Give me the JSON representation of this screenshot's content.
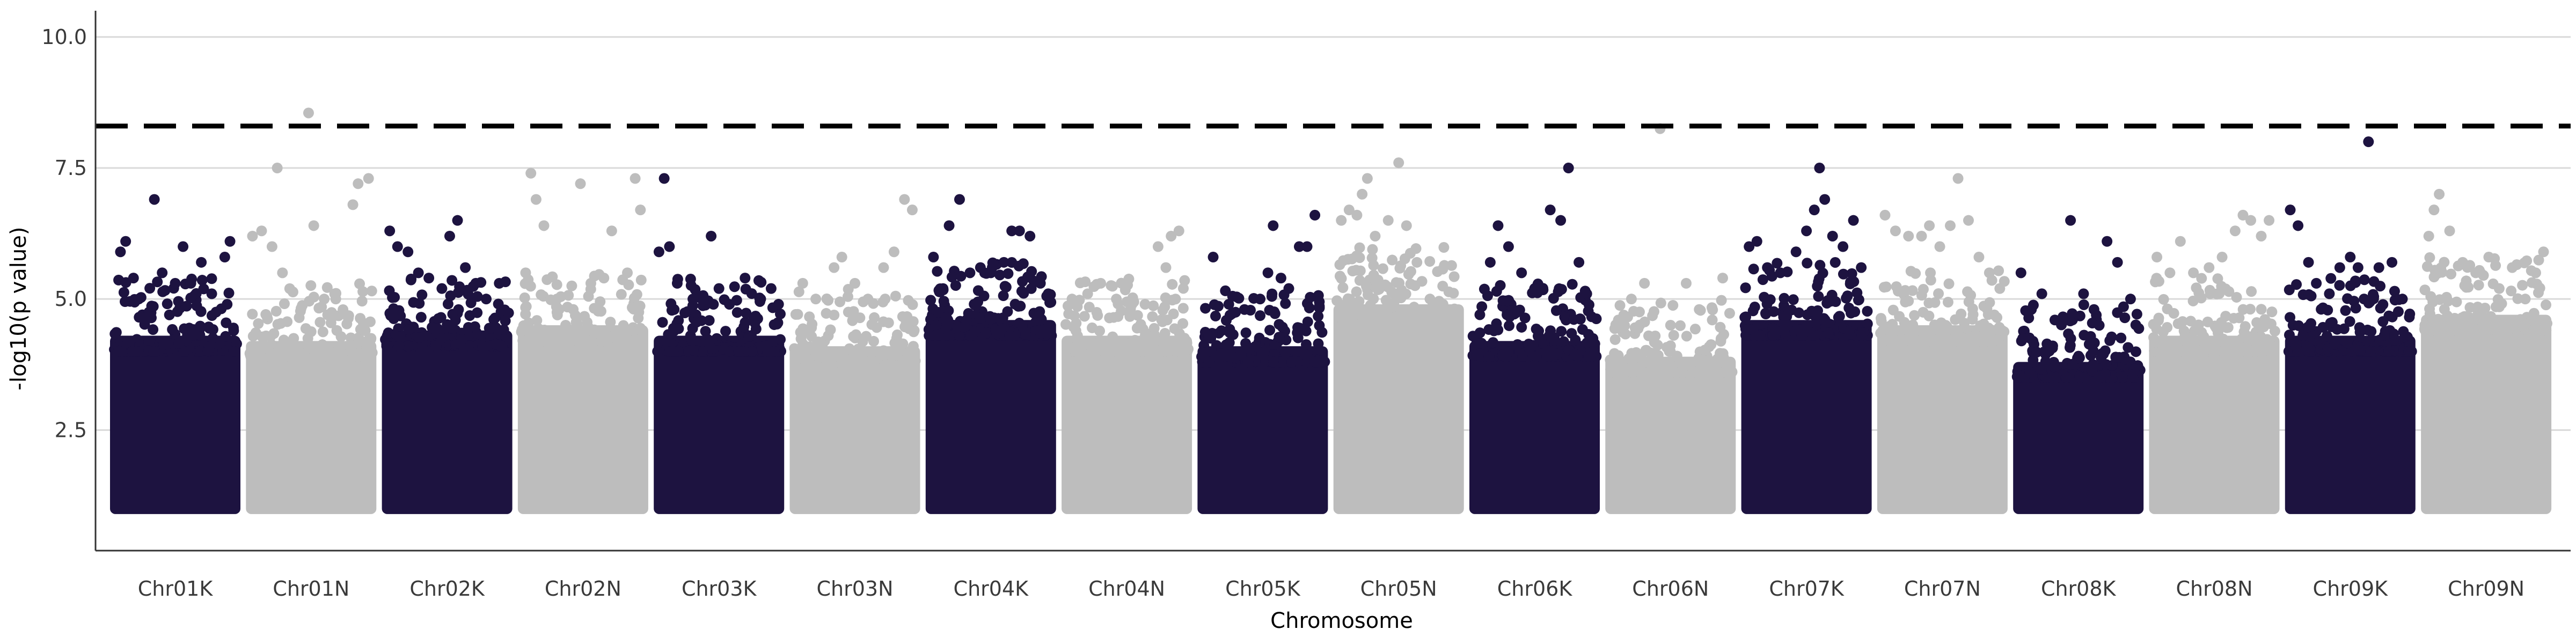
{
  "chart_data": {
    "type": "scatter",
    "xlabel": "Chromosome",
    "ylabel": "-log10(p value)",
    "ylim": [
      0.2,
      10.5
    ],
    "yticks": [
      2.5,
      5.0,
      7.5,
      10.0
    ],
    "ytick_labels": [
      "2.5",
      "5.0",
      "7.5",
      "10.0"
    ],
    "grid": "horizontal major only",
    "legend": "none",
    "threshold": 8.3,
    "point_floor": 1.0,
    "colors": {
      "dark": "#1d1340",
      "light": "#bdbdbd",
      "threshold": "#000000",
      "grid": "#d9d9d9",
      "axis": "#333333"
    },
    "chromosomes": [
      {
        "name": "Chr01K",
        "color": "dark",
        "dense_top": 4.3,
        "peaks": [
          [
            0.08,
            5.9
          ],
          [
            0.12,
            6.1
          ],
          [
            0.18,
            5.4
          ],
          [
            0.22,
            5.0
          ],
          [
            0.34,
            6.9
          ],
          [
            0.4,
            5.5
          ],
          [
            0.5,
            5.3
          ],
          [
            0.56,
            6.0
          ],
          [
            0.62,
            5.3
          ],
          [
            0.7,
            5.7
          ],
          [
            0.78,
            5.1
          ],
          [
            0.88,
            5.8
          ],
          [
            0.92,
            6.1
          ]
        ]
      },
      {
        "name": "Chr01N",
        "color": "light",
        "dense_top": 4.2,
        "peaks": [
          [
            0.05,
            6.2
          ],
          [
            0.12,
            6.3
          ],
          [
            0.2,
            6.0
          ],
          [
            0.24,
            7.5
          ],
          [
            0.28,
            5.5
          ],
          [
            0.48,
            8.55
          ],
          [
            0.52,
            6.4
          ],
          [
            0.6,
            5.0
          ],
          [
            0.68,
            5.1
          ],
          [
            0.82,
            6.8
          ],
          [
            0.86,
            7.2
          ],
          [
            0.94,
            7.3
          ]
        ]
      },
      {
        "name": "Chr02K",
        "color": "dark",
        "dense_top": 4.4,
        "peaks": [
          [
            0.06,
            6.3
          ],
          [
            0.12,
            6.0
          ],
          [
            0.2,
            5.9
          ],
          [
            0.28,
            5.5
          ],
          [
            0.36,
            5.4
          ],
          [
            0.46,
            5.2
          ],
          [
            0.52,
            6.2
          ],
          [
            0.58,
            6.5
          ],
          [
            0.64,
            5.6
          ],
          [
            0.72,
            5.3
          ],
          [
            0.8,
            5.0
          ],
          [
            0.9,
            5.3
          ]
        ]
      },
      {
        "name": "Chr02N",
        "color": "light",
        "dense_top": 4.5,
        "peaks": [
          [
            0.06,
            5.5
          ],
          [
            0.1,
            7.4
          ],
          [
            0.14,
            6.9
          ],
          [
            0.2,
            6.4
          ],
          [
            0.3,
            5.0
          ],
          [
            0.48,
            7.2
          ],
          [
            0.56,
            5.3
          ],
          [
            0.66,
            5.4
          ],
          [
            0.72,
            6.3
          ],
          [
            0.84,
            5.5
          ],
          [
            0.9,
            7.3
          ],
          [
            0.94,
            6.7
          ]
        ]
      },
      {
        "name": "Chr03K",
        "color": "dark",
        "dense_top": 4.3,
        "peaks": [
          [
            0.04,
            5.9
          ],
          [
            0.08,
            7.3
          ],
          [
            0.12,
            6.0
          ],
          [
            0.18,
            5.3
          ],
          [
            0.3,
            5.0
          ],
          [
            0.44,
            6.2
          ],
          [
            0.5,
            5.2
          ],
          [
            0.58,
            4.9
          ],
          [
            0.7,
            5.4
          ],
          [
            0.82,
            5.0
          ],
          [
            0.9,
            5.2
          ]
        ]
      },
      {
        "name": "Chr03N",
        "color": "light",
        "dense_top": 4.1,
        "peaks": [
          [
            0.1,
            5.3
          ],
          [
            0.2,
            5.0
          ],
          [
            0.34,
            5.6
          ],
          [
            0.4,
            5.8
          ],
          [
            0.5,
            5.3
          ],
          [
            0.6,
            5.0
          ],
          [
            0.72,
            5.6
          ],
          [
            0.8,
            5.9
          ],
          [
            0.88,
            6.9
          ],
          [
            0.94,
            6.7
          ]
        ]
      },
      {
        "name": "Chr04K",
        "color": "dark",
        "dense_top": 4.6,
        "peaks": [
          [
            0.06,
            5.8
          ],
          [
            0.18,
            6.4
          ],
          [
            0.26,
            6.9
          ],
          [
            0.34,
            5.5
          ],
          [
            0.42,
            5.6
          ],
          [
            0.5,
            5.5
          ],
          [
            0.6,
            5.7
          ],
          [
            0.66,
            6.3
          ],
          [
            0.72,
            6.3
          ],
          [
            0.8,
            6.2
          ],
          [
            0.88,
            5.3
          ],
          [
            0.94,
            5.1
          ]
        ]
      },
      {
        "name": "Chr04N",
        "color": "light",
        "dense_top": 4.3,
        "peaks": [
          [
            0.08,
            5.0
          ],
          [
            0.2,
            5.1
          ],
          [
            0.3,
            5.3
          ],
          [
            0.42,
            5.0
          ],
          [
            0.54,
            4.9
          ],
          [
            0.64,
            4.9
          ],
          [
            0.74,
            6.0
          ],
          [
            0.8,
            5.6
          ],
          [
            0.84,
            6.2
          ],
          [
            0.9,
            6.3
          ]
        ]
      },
      {
        "name": "Chr05K",
        "color": "dark",
        "dense_top": 4.1,
        "peaks": [
          [
            0.12,
            5.8
          ],
          [
            0.24,
            4.9
          ],
          [
            0.36,
            4.8
          ],
          [
            0.48,
            5.0
          ],
          [
            0.54,
            5.5
          ],
          [
            0.58,
            6.4
          ],
          [
            0.64,
            5.4
          ],
          [
            0.7,
            5.2
          ],
          [
            0.78,
            6.0
          ],
          [
            0.84,
            6.0
          ],
          [
            0.9,
            6.6
          ]
        ]
      },
      {
        "name": "Chr05N",
        "color": "light",
        "dense_top": 4.9,
        "peaks": [
          [
            0.06,
            6.5
          ],
          [
            0.12,
            6.7
          ],
          [
            0.18,
            6.6
          ],
          [
            0.22,
            7.0
          ],
          [
            0.26,
            7.3
          ],
          [
            0.32,
            6.2
          ],
          [
            0.42,
            6.5
          ],
          [
            0.5,
            7.6
          ],
          [
            0.56,
            6.4
          ],
          [
            0.64,
            5.7
          ],
          [
            0.74,
            5.0
          ],
          [
            0.84,
            4.9
          ]
        ]
      },
      {
        "name": "Chr06K",
        "color": "dark",
        "dense_top": 4.2,
        "peaks": [
          [
            0.08,
            4.7
          ],
          [
            0.16,
            5.7
          ],
          [
            0.22,
            6.4
          ],
          [
            0.3,
            6.0
          ],
          [
            0.4,
            5.5
          ],
          [
            0.5,
            5.2
          ],
          [
            0.62,
            6.7
          ],
          [
            0.7,
            6.5
          ],
          [
            0.76,
            7.5
          ],
          [
            0.84,
            5.7
          ],
          [
            0.9,
            5.1
          ]
        ]
      },
      {
        "name": "Chr06N",
        "color": "light",
        "dense_top": 3.9,
        "peaks": [
          [
            0.1,
            4.6
          ],
          [
            0.2,
            5.0
          ],
          [
            0.3,
            5.3
          ],
          [
            0.42,
            8.25
          ],
          [
            0.5,
            4.5
          ],
          [
            0.62,
            5.3
          ],
          [
            0.72,
            4.8
          ],
          [
            0.82,
            4.6
          ],
          [
            0.9,
            5.4
          ]
        ]
      },
      {
        "name": "Chr07K",
        "color": "dark",
        "dense_top": 4.6,
        "peaks": [
          [
            0.06,
            6.0
          ],
          [
            0.12,
            6.1
          ],
          [
            0.2,
            5.6
          ],
          [
            0.3,
            5.5
          ],
          [
            0.42,
            5.9
          ],
          [
            0.5,
            6.3
          ],
          [
            0.56,
            6.7
          ],
          [
            0.6,
            7.5
          ],
          [
            0.64,
            6.9
          ],
          [
            0.7,
            6.2
          ],
          [
            0.78,
            6.0
          ],
          [
            0.86,
            6.5
          ],
          [
            0.92,
            5.6
          ]
        ]
      },
      {
        "name": "Chr07N",
        "color": "light",
        "dense_top": 4.5,
        "peaks": [
          [
            0.06,
            6.6
          ],
          [
            0.14,
            6.3
          ],
          [
            0.24,
            6.2
          ],
          [
            0.34,
            6.2
          ],
          [
            0.4,
            6.4
          ],
          [
            0.48,
            6.0
          ],
          [
            0.56,
            6.4
          ],
          [
            0.62,
            7.3
          ],
          [
            0.7,
            6.5
          ],
          [
            0.78,
            5.8
          ],
          [
            0.86,
            5.5
          ],
          [
            0.94,
            5.2
          ]
        ]
      },
      {
        "name": "Chr08K",
        "color": "dark",
        "dense_top": 3.8,
        "peaks": [
          [
            0.06,
            5.5
          ],
          [
            0.14,
            4.8
          ],
          [
            0.22,
            5.1
          ],
          [
            0.32,
            4.6
          ],
          [
            0.44,
            6.5
          ],
          [
            0.54,
            5.1
          ],
          [
            0.62,
            4.8
          ],
          [
            0.72,
            6.1
          ],
          [
            0.8,
            5.7
          ],
          [
            0.9,
            5.0
          ]
        ]
      },
      {
        "name": "Chr08N",
        "color": "light",
        "dense_top": 4.3,
        "peaks": [
          [
            0.06,
            5.8
          ],
          [
            0.16,
            5.5
          ],
          [
            0.24,
            6.1
          ],
          [
            0.34,
            5.5
          ],
          [
            0.46,
            5.6
          ],
          [
            0.56,
            5.8
          ],
          [
            0.66,
            6.3
          ],
          [
            0.72,
            6.6
          ],
          [
            0.78,
            6.5
          ],
          [
            0.86,
            6.2
          ],
          [
            0.92,
            6.5
          ]
        ]
      },
      {
        "name": "Chr09K",
        "color": "dark",
        "dense_top": 4.3,
        "peaks": [
          [
            0.04,
            6.7
          ],
          [
            0.1,
            6.4
          ],
          [
            0.18,
            5.7
          ],
          [
            0.24,
            5.3
          ],
          [
            0.34,
            5.1
          ],
          [
            0.42,
            5.6
          ],
          [
            0.5,
            5.8
          ],
          [
            0.56,
            5.6
          ],
          [
            0.64,
            8.0
          ],
          [
            0.72,
            5.6
          ],
          [
            0.82,
            5.7
          ],
          [
            0.9,
            5.0
          ]
        ]
      },
      {
        "name": "Chr09N",
        "color": "light",
        "dense_top": 4.7,
        "peaks": [
          [
            0.06,
            6.2
          ],
          [
            0.1,
            6.7
          ],
          [
            0.14,
            7.0
          ],
          [
            0.22,
            6.3
          ],
          [
            0.32,
            5.7
          ],
          [
            0.42,
            5.5
          ],
          [
            0.52,
            5.8
          ],
          [
            0.6,
            5.2
          ],
          [
            0.7,
            5.6
          ],
          [
            0.8,
            5.0
          ],
          [
            0.88,
            5.5
          ],
          [
            0.94,
            5.9
          ]
        ]
      }
    ]
  }
}
